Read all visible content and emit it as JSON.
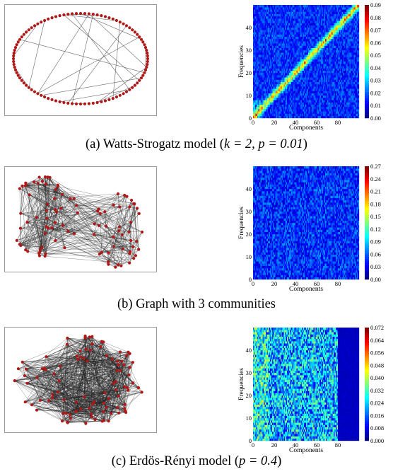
{
  "panels": [
    {
      "id": "a",
      "caption_prefix": "(a) Watts-Strogatz model (",
      "caption_math": "k = 2, p = 0.01",
      "caption_suffix": ")",
      "graph": {
        "layout": "ring",
        "nodes": 100,
        "edge_color": "#555555",
        "node_color": "#b01818"
      },
      "heatmap": {
        "pattern": "diagonal",
        "cmax": 0.09,
        "colorbar_ticks": [
          "0.09",
          "0.08",
          "0.07",
          "0.06",
          "0.05",
          "0.04",
          "0.03",
          "0.02",
          "0.01",
          "0.00"
        ]
      }
    },
    {
      "id": "b",
      "caption_prefix": "(b) Graph with 3 communities",
      "caption_math": "",
      "caption_suffix": "",
      "graph": {
        "layout": "communities",
        "nodes": 100,
        "edge_color": "#222222",
        "node_color": "#b01818"
      },
      "heatmap": {
        "pattern": "uniform",
        "cmax": 0.27,
        "colorbar_ticks": [
          "0.27",
          "0.24",
          "0.21",
          "0.18",
          "0.15",
          "0.12",
          "0.09",
          "0.06",
          "0.03",
          "0.00"
        ]
      }
    },
    {
      "id": "c",
      "caption_prefix": "(c) Erdös-Rényi model (",
      "caption_math": "p = 0.4",
      "caption_suffix": ")",
      "graph": {
        "layout": "random",
        "nodes": 100,
        "edge_color": "#222222",
        "node_color": "#b01818"
      },
      "heatmap": {
        "pattern": "band",
        "cmax": 0.072,
        "colorbar_ticks": [
          "0.072",
          "0.064",
          "0.056",
          "0.048",
          "0.040",
          "0.032",
          "0.024",
          "0.016",
          "0.008",
          "0.000"
        ]
      }
    }
  ],
  "heatmap_axes": {
    "xlabel": "Components",
    "ylabel": "Frequencies",
    "xticks": [
      "0",
      "20",
      "40",
      "60",
      "80"
    ],
    "yticks": [
      "0",
      "10",
      "20",
      "30",
      "40"
    ],
    "xlim": [
      0,
      100
    ],
    "ylim": [
      0,
      50
    ]
  }
}
